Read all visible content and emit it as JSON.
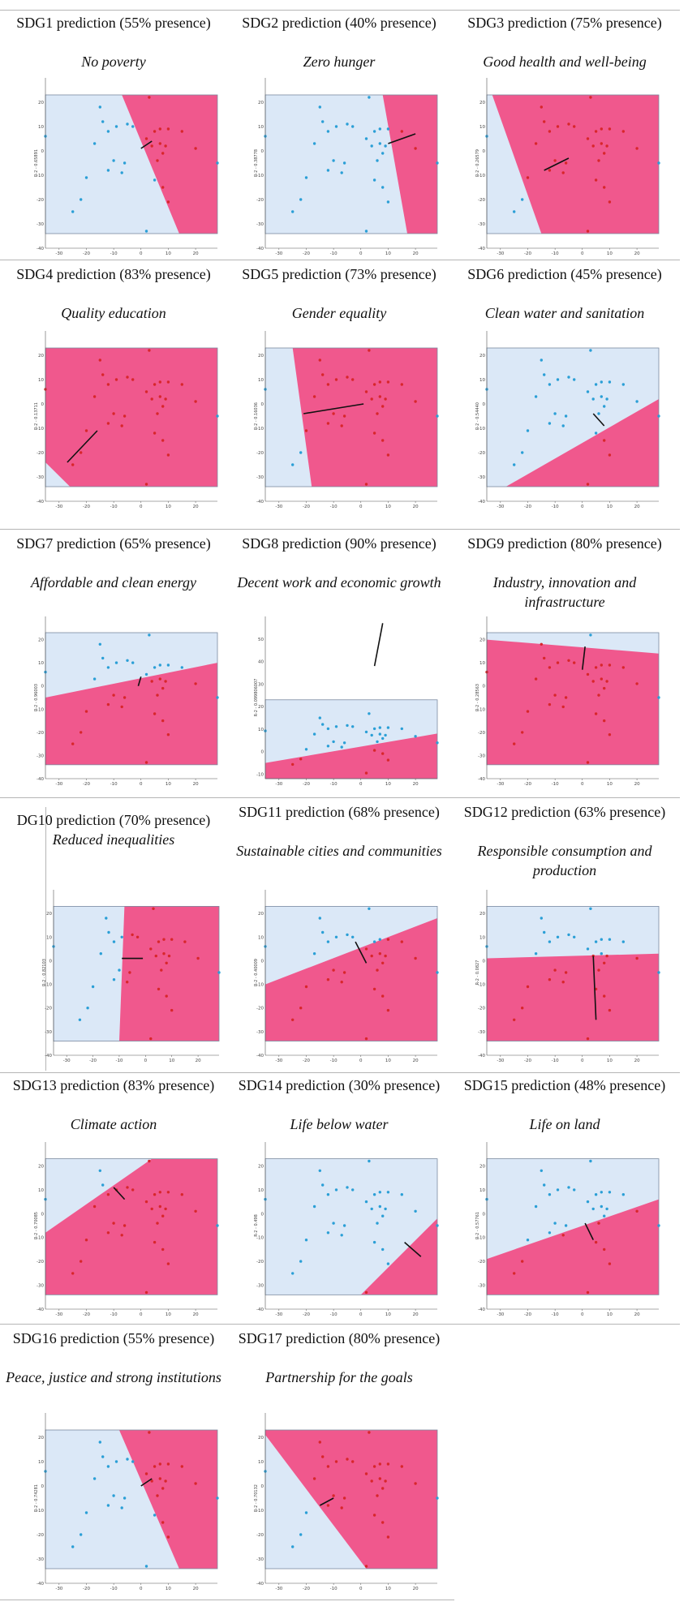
{
  "colors": {
    "blue_region": "#dbe8f7",
    "pink_region": "#f0588d",
    "blue_dot": "#2b9fd6",
    "red_dot": "#d8262b",
    "axis": "#555555",
    "boundary": "#111111"
  },
  "chart_data": [
    {
      "id": "sdg1",
      "type": "scatter",
      "title": "SDG1 prediction (55% presence)",
      "subtitle": "No poverty",
      "ylabel": "R-2 - 0.65891",
      "xlim": [
        -35,
        28
      ],
      "ylim": [
        -40,
        30
      ],
      "xticks": [
        -30,
        -20,
        -10,
        0,
        10,
        20
      ],
      "yticks": [
        20,
        10,
        0,
        -10,
        -20,
        -30,
        -40
      ],
      "frame": [
        -35,
        28,
        -34,
        23
      ],
      "pink": [
        [
          -7,
          23
        ],
        [
          28,
          23
        ],
        [
          28,
          -34
        ],
        [
          14,
          -34
        ]
      ],
      "arrow": [
        [
          0,
          1
        ],
        [
          4,
          4
        ]
      ]
    },
    {
      "id": "sdg2",
      "type": "scatter",
      "title": "SDG2 prediction (40% presence)",
      "subtitle": "Zero hunger",
      "ylabel": "R-2 - 0.38778",
      "xlim": [
        -35,
        28
      ],
      "ylim": [
        -40,
        30
      ],
      "xticks": [
        -30,
        -20,
        -10,
        0,
        10,
        20
      ],
      "yticks": [
        20,
        10,
        0,
        -10,
        -20,
        -30,
        -40
      ],
      "frame": [
        -35,
        28,
        -34,
        23
      ],
      "pink": [
        [
          8,
          23
        ],
        [
          28,
          23
        ],
        [
          28,
          -34
        ],
        [
          17,
          -34
        ]
      ],
      "arrow": [
        [
          10,
          3
        ],
        [
          20,
          7
        ]
      ]
    },
    {
      "id": "sdg3",
      "type": "scatter",
      "title": "SDG3 prediction (75% presence)",
      "subtitle": "Good health and well-being",
      "ylabel": "R-2 - 0.26579",
      "xlim": [
        -35,
        28
      ],
      "ylim": [
        -40,
        30
      ],
      "xticks": [
        -30,
        -20,
        -10,
        0,
        10,
        20
      ],
      "yticks": [
        20,
        10,
        0,
        -10,
        -20,
        -30,
        -40
      ],
      "frame": [
        -35,
        28,
        -34,
        23
      ],
      "pink": [
        [
          -33,
          23
        ],
        [
          28,
          23
        ],
        [
          28,
          -34
        ],
        [
          -15,
          -34
        ]
      ],
      "arrow": [
        [
          -14,
          -8
        ],
        [
          -5,
          -3
        ]
      ]
    },
    {
      "id": "sdg4",
      "type": "scatter",
      "title": "SDG4 prediction (83% presence)",
      "subtitle": "Quality education",
      "ylabel": "R-2 - 0.13711",
      "xlim": [
        -35,
        28
      ],
      "ylim": [
        -40,
        30
      ],
      "xticks": [
        -30,
        -20,
        -10,
        0,
        10,
        20
      ],
      "yticks": [
        20,
        10,
        0,
        -10,
        -20,
        -30,
        -40
      ],
      "frame": [
        -35,
        28,
        -34,
        23
      ],
      "pink": [
        [
          -35,
          23
        ],
        [
          28,
          23
        ],
        [
          28,
          -34
        ],
        [
          -26,
          -34
        ],
        [
          -35,
          -24
        ]
      ],
      "arrow": [
        [
          -27,
          -24
        ],
        [
          -16,
          -11
        ]
      ]
    },
    {
      "id": "sdg5",
      "type": "scatter",
      "title": "SDG5 prediction (73% presence)",
      "subtitle": "Gender equality",
      "ylabel": "R-2 - 0.16036",
      "xlim": [
        -35,
        28
      ],
      "ylim": [
        -40,
        30
      ],
      "xticks": [
        -30,
        -20,
        -10,
        0,
        10,
        20
      ],
      "yticks": [
        20,
        10,
        0,
        -10,
        -20,
        -30,
        -40
      ],
      "frame": [
        -35,
        28,
        -34,
        23
      ],
      "pink": [
        [
          -25,
          23
        ],
        [
          28,
          23
        ],
        [
          28,
          -34
        ],
        [
          -18,
          -34
        ]
      ],
      "arrow": [
        [
          -21,
          -4
        ],
        [
          1,
          0
        ]
      ]
    },
    {
      "id": "sdg6",
      "type": "scatter",
      "title": "SDG6 prediction (45% presence)",
      "subtitle": "Clean water and sanitation",
      "ylabel": "R-2 - 0.54440",
      "xlim": [
        -35,
        28
      ],
      "ylim": [
        -40,
        30
      ],
      "xticks": [
        -30,
        -20,
        -10,
        0,
        10,
        20
      ],
      "yticks": [
        20,
        10,
        0,
        -10,
        -20,
        -30,
        -40
      ],
      "frame": [
        -35,
        28,
        -34,
        23
      ],
      "pink": [
        [
          28,
          2
        ],
        [
          28,
          -34
        ],
        [
          -28,
          -34
        ]
      ],
      "arrow": [
        [
          4,
          -4
        ],
        [
          8,
          -9
        ]
      ]
    },
    {
      "id": "sdg7",
      "type": "scatter",
      "title": "SDG7 prediction (65% presence)",
      "subtitle": "Affordable and clean energy",
      "ylabel": "R-2 - 0.96003",
      "xlim": [
        -35,
        28
      ],
      "ylim": [
        -40,
        30
      ],
      "xticks": [
        -30,
        -20,
        -10,
        0,
        10,
        20
      ],
      "yticks": [
        20,
        10,
        0,
        -10,
        -20,
        -30,
        -40
      ],
      "frame": [
        -35,
        28,
        -34,
        23
      ],
      "pink": [
        [
          -35,
          -5
        ],
        [
          28,
          10
        ],
        [
          28,
          -34
        ],
        [
          -35,
          -34
        ]
      ],
      "arrow": [
        [
          -1,
          0
        ],
        [
          0,
          4
        ]
      ]
    },
    {
      "id": "sdg8",
      "type": "scatter",
      "title": "SDG8 prediction (90% presence)",
      "subtitle": "Decent work and economic growth",
      "ylabel": "R-2 - 0.099806007",
      "xlim": [
        -35,
        28
      ],
      "ylim": [
        -12,
        60
      ],
      "xticks": [
        -30,
        -20,
        -10,
        0,
        10,
        20
      ],
      "yticks": [
        50,
        40,
        30,
        20,
        10,
        0,
        -10
      ],
      "frame": [
        -35,
        28,
        -12,
        23
      ],
      "pink": [
        [
          -35,
          -5
        ],
        [
          28,
          8
        ],
        [
          28,
          -12
        ],
        [
          -35,
          -12
        ]
      ],
      "arrow": [
        [
          5,
          38
        ],
        [
          8,
          57
        ]
      ]
    },
    {
      "id": "sdg9",
      "type": "scatter",
      "title": "SDG9 prediction (80% presence)",
      "subtitle": "Industry, innovation and infrastructure",
      "ylabel": "R-2 - 0.28563",
      "xlim": [
        -35,
        28
      ],
      "ylim": [
        -40,
        30
      ],
      "xticks": [
        -30,
        -20,
        -10,
        0,
        10,
        20
      ],
      "yticks": [
        20,
        10,
        0,
        -10,
        -20,
        -30,
        -40
      ],
      "frame": [
        -35,
        28,
        -34,
        23
      ],
      "pink": [
        [
          -35,
          20
        ],
        [
          28,
          14
        ],
        [
          28,
          -34
        ],
        [
          -35,
          -34
        ]
      ],
      "arrow": [
        [
          0,
          7
        ],
        [
          1,
          17
        ]
      ]
    },
    {
      "id": "sdg10",
      "type": "scatter",
      "title": "DG10 prediction (70% presence)",
      "subtitle": "Reduced inequalities",
      "ylabel": "R-2 - 0.82103",
      "xlim": [
        -35,
        28
      ],
      "ylim": [
        -40,
        30
      ],
      "xticks": [
        -30,
        -20,
        -10,
        0,
        10,
        20
      ],
      "yticks": [
        20,
        10,
        0,
        -10,
        -20,
        -30,
        -40
      ],
      "frame": [
        -35,
        28,
        -34,
        23
      ],
      "pink": [
        [
          -8,
          23
        ],
        [
          28,
          23
        ],
        [
          28,
          -34
        ],
        [
          -10,
          -34
        ]
      ],
      "arrow": [
        [
          -9,
          1
        ],
        [
          -1,
          1
        ]
      ]
    },
    {
      "id": "sdg11",
      "type": "scatter",
      "title": "SDG11 prediction (68% presence)",
      "subtitle": "Sustainable cities and communities",
      "ylabel": "R-2 - 0.40009",
      "xlim": [
        -35,
        28
      ],
      "ylim": [
        -40,
        30
      ],
      "xticks": [
        -30,
        -20,
        -10,
        0,
        10,
        20
      ],
      "yticks": [
        20,
        10,
        0,
        -10,
        -20,
        -30,
        -40
      ],
      "frame": [
        -35,
        28,
        -34,
        23
      ],
      "pink": [
        [
          -35,
          -10
        ],
        [
          28,
          18
        ],
        [
          28,
          -34
        ],
        [
          -35,
          -34
        ]
      ],
      "arrow": [
        [
          -2,
          8
        ],
        [
          2,
          -1
        ]
      ]
    },
    {
      "id": "sdg12",
      "type": "scatter",
      "title": "SDG12 prediction (63% presence)",
      "subtitle": "Responsible consumption and production",
      "ylabel": "R-2 - 0.0827",
      "xlim": [
        -35,
        28
      ],
      "ylim": [
        -40,
        30
      ],
      "xticks": [
        -30,
        -20,
        -10,
        0,
        10,
        20
      ],
      "yticks": [
        20,
        10,
        0,
        -10,
        -20,
        -30,
        -40
      ],
      "frame": [
        -35,
        28,
        -34,
        23
      ],
      "pink": [
        [
          -35,
          1
        ],
        [
          28,
          3
        ],
        [
          28,
          -34
        ],
        [
          -35,
          -34
        ]
      ],
      "arrow": [
        [
          4,
          2
        ],
        [
          5,
          -25
        ]
      ]
    },
    {
      "id": "sdg13",
      "type": "scatter",
      "title": "SDG13 prediction (83% presence)",
      "subtitle": "Climate action",
      "ylabel": "R-2 - 0.70085",
      "xlim": [
        -35,
        28
      ],
      "ylim": [
        -40,
        30
      ],
      "xticks": [
        -30,
        -20,
        -10,
        0,
        10,
        20
      ],
      "yticks": [
        20,
        10,
        0,
        -10,
        -20,
        -30,
        -40
      ],
      "frame": [
        -35,
        28,
        -34,
        23
      ],
      "pink": [
        [
          4,
          23
        ],
        [
          28,
          23
        ],
        [
          28,
          -34
        ],
        [
          -35,
          -34
        ],
        [
          -35,
          -8
        ]
      ],
      "arrow": [
        [
          -10,
          11
        ],
        [
          -6,
          6
        ]
      ]
    },
    {
      "id": "sdg14",
      "type": "scatter",
      "title": "SDG14 prediction (30% presence)",
      "subtitle": "Life below water",
      "ylabel": "R-2 - 0.498",
      "xlim": [
        -35,
        28
      ],
      "ylim": [
        -40,
        30
      ],
      "xticks": [
        -30,
        -20,
        -10,
        0,
        10,
        20
      ],
      "yticks": [
        20,
        10,
        0,
        -10,
        -20,
        -30,
        -40
      ],
      "frame": [
        -35,
        28,
        -34,
        23
      ],
      "pink": [
        [
          28,
          -2
        ],
        [
          28,
          -34
        ],
        [
          0,
          -34
        ]
      ],
      "arrow": [
        [
          16,
          -12
        ],
        [
          22,
          -18
        ]
      ]
    },
    {
      "id": "sdg15",
      "type": "scatter",
      "title": "SDG15 prediction (48% presence)",
      "subtitle": "Life on land",
      "ylabel": "R-2 - 0.57761",
      "xlim": [
        -35,
        28
      ],
      "ylim": [
        -40,
        30
      ],
      "xticks": [
        -30,
        -20,
        -10,
        0,
        10,
        20
      ],
      "yticks": [
        20,
        10,
        0,
        -10,
        -20,
        -30,
        -40
      ],
      "frame": [
        -35,
        28,
        -34,
        23
      ],
      "pink": [
        [
          -35,
          -19
        ],
        [
          28,
          6
        ],
        [
          28,
          -34
        ],
        [
          -35,
          -34
        ]
      ],
      "arrow": [
        [
          1,
          -4
        ],
        [
          4,
          -11
        ]
      ]
    },
    {
      "id": "sdg16",
      "type": "scatter",
      "title": "SDG16 prediction (55% presence)",
      "subtitle": "Peace, justice and strong institutions",
      "ylabel": "R-2 - 0.74281",
      "xlim": [
        -35,
        28
      ],
      "ylim": [
        -40,
        30
      ],
      "xticks": [
        -30,
        -20,
        -10,
        0,
        10,
        20
      ],
      "yticks": [
        20,
        10,
        0,
        -10,
        -20,
        -30,
        -40
      ],
      "frame": [
        -35,
        28,
        -34,
        23
      ],
      "pink": [
        [
          -8,
          23
        ],
        [
          28,
          23
        ],
        [
          28,
          -34
        ],
        [
          14,
          -34
        ]
      ],
      "arrow": [
        [
          0,
          0
        ],
        [
          4,
          3
        ]
      ]
    },
    {
      "id": "sdg17",
      "type": "scatter",
      "title": "SDG17 prediction (80% presence)",
      "subtitle": "Partnership for the goals",
      "ylabel": "R-2 - 0.70132",
      "xlim": [
        -35,
        28
      ],
      "ylim": [
        -40,
        30
      ],
      "xticks": [
        -30,
        -20,
        -10,
        0,
        10,
        20
      ],
      "yticks": [
        20,
        10,
        0,
        -10,
        -20,
        -30,
        -40
      ],
      "frame": [
        -35,
        28,
        -34,
        23
      ],
      "pink": [
        [
          -35,
          21
        ],
        [
          -35,
          23
        ],
        [
          28,
          23
        ],
        [
          28,
          -34
        ],
        [
          2,
          -34
        ]
      ],
      "arrow": [
        [
          -15,
          -8
        ],
        [
          -10,
          -5
        ]
      ]
    }
  ]
}
